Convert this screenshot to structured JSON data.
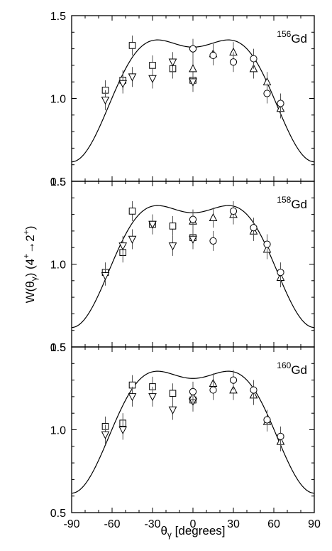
{
  "figure": {
    "ylabel_main": "W(θ",
    "ylabel_sub": "γ",
    "ylabel_tail": ")  (4",
    "ylabel_sup1": "+",
    "ylabel_arrow": "→",
    "ylabel_num2": "2",
    "ylabel_sup2": "+",
    "ylabel_close": ")",
    "xlabel_main": "θ",
    "xlabel_sub": "γ",
    "xlabel_tail": " [degrees]"
  },
  "chart_data": [
    {
      "type": "scatter",
      "label_mass": "156",
      "label_element": "Gd",
      "xlim": [
        -90,
        90
      ],
      "ylim": [
        0.5,
        1.5
      ],
      "xticks": [
        -90,
        -60,
        -30,
        0,
        30,
        60,
        90
      ],
      "yticks": [
        "0.5",
        "1.0",
        "1.5"
      ],
      "yticks_values": [
        0.5,
        1.0,
        1.5
      ],
      "fit_curve": {
        "a0": 1.0,
        "a2": 0.57,
        "a4": -0.26
      },
      "series": [
        {
          "marker": "square",
          "points": [
            [
              -65,
              1.05
            ],
            [
              -52,
              1.11
            ],
            [
              -45,
              1.32
            ],
            [
              -30,
              1.2
            ],
            [
              -15,
              1.18
            ],
            [
              0,
              1.11
            ]
          ]
        },
        {
          "marker": "triangle-down",
          "points": [
            [
              -65,
              0.99
            ],
            [
              -52,
              1.09
            ],
            [
              -45,
              1.13
            ],
            [
              -30,
              1.12
            ],
            [
              -15,
              1.22
            ],
            [
              0,
              1.1
            ]
          ]
        },
        {
          "marker": "triangle-up",
          "points": [
            [
              0,
              1.18
            ],
            [
              15,
              1.27
            ],
            [
              30,
              1.28
            ],
            [
              45,
              1.18
            ],
            [
              55,
              1.1
            ],
            [
              65,
              0.94
            ]
          ]
        },
        {
          "marker": "circle",
          "points": [
            [
              0,
              1.3
            ],
            [
              15,
              1.26
            ],
            [
              30,
              1.22
            ],
            [
              45,
              1.24
            ],
            [
              55,
              1.03
            ],
            [
              65,
              0.97
            ]
          ]
        }
      ]
    },
    {
      "type": "scatter",
      "label_mass": "158",
      "label_element": "Gd",
      "xlim": [
        -90,
        90
      ],
      "ylim": [
        0.5,
        1.5
      ],
      "xticks": [
        -90,
        -60,
        -30,
        0,
        30,
        60,
        90
      ],
      "yticks": [
        "0.5",
        "1.0",
        "1.5"
      ],
      "yticks_values": [
        0.5,
        1.0,
        1.5
      ],
      "fit_curve": {
        "a0": 1.0,
        "a2": 0.57,
        "a4": -0.26
      },
      "series": [
        {
          "marker": "square",
          "points": [
            [
              -65,
              0.95
            ],
            [
              -52,
              1.07
            ],
            [
              -45,
              1.32
            ],
            [
              -30,
              1.24
            ],
            [
              -15,
              1.23
            ],
            [
              0,
              1.16
            ]
          ]
        },
        {
          "marker": "triangle-down",
          "points": [
            [
              -65,
              0.93
            ],
            [
              -52,
              1.11
            ],
            [
              -45,
              1.15
            ],
            [
              -30,
              1.24
            ],
            [
              -15,
              1.11
            ],
            [
              0,
              1.15
            ]
          ]
        },
        {
          "marker": "triangle-up",
          "points": [
            [
              0,
              1.26
            ],
            [
              15,
              1.28
            ],
            [
              30,
              1.3
            ],
            [
              45,
              1.2
            ],
            [
              55,
              1.09
            ],
            [
              65,
              0.92
            ]
          ]
        },
        {
          "marker": "circle",
          "points": [
            [
              0,
              1.27
            ],
            [
              15,
              1.14
            ],
            [
              30,
              1.32
            ],
            [
              45,
              1.22
            ],
            [
              55,
              1.12
            ],
            [
              65,
              0.95
            ]
          ]
        }
      ]
    },
    {
      "type": "scatter",
      "label_mass": "160",
      "label_element": "Gd",
      "xlim": [
        -90,
        90
      ],
      "ylim": [
        0.5,
        1.5
      ],
      "xticks": [
        -90,
        -60,
        -30,
        0,
        30,
        60,
        90
      ],
      "yticks": [
        "0.5",
        "1.0",
        "1.5"
      ],
      "yticks_values": [
        0.5,
        1.0,
        1.5
      ],
      "fit_curve": {
        "a0": 1.0,
        "a2": 0.57,
        "a4": -0.26
      },
      "series": [
        {
          "marker": "square",
          "points": [
            [
              -65,
              1.02
            ],
            [
              -52,
              1.04
            ],
            [
              -45,
              1.27
            ],
            [
              -30,
              1.26
            ],
            [
              -15,
              1.22
            ],
            [
              0,
              1.18
            ]
          ]
        },
        {
          "marker": "triangle-down",
          "points": [
            [
              -65,
              0.97
            ],
            [
              -52,
              1.0
            ],
            [
              -45,
              1.2
            ],
            [
              -30,
              1.2
            ],
            [
              -15,
              1.12
            ],
            [
              0,
              1.17
            ]
          ]
        },
        {
          "marker": "triangle-up",
          "points": [
            [
              0,
              1.2
            ],
            [
              15,
              1.28
            ],
            [
              30,
              1.24
            ],
            [
              45,
              1.21
            ],
            [
              55,
              1.05
            ],
            [
              65,
              0.93
            ]
          ]
        },
        {
          "marker": "circle",
          "points": [
            [
              0,
              1.23
            ],
            [
              15,
              1.24
            ],
            [
              30,
              1.3
            ],
            [
              45,
              1.24
            ],
            [
              55,
              1.06
            ],
            [
              65,
              0.96
            ]
          ]
        }
      ]
    }
  ]
}
